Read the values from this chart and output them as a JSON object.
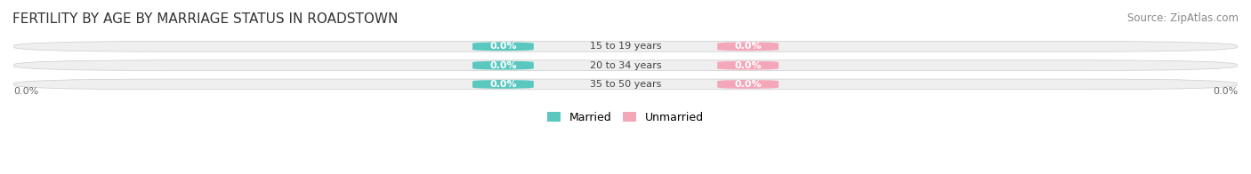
{
  "title": "FERTILITY BY AGE BY MARRIAGE STATUS IN ROADSTOWN",
  "source": "Source: ZipAtlas.com",
  "categories": [
    "15 to 19 years",
    "20 to 34 years",
    "35 to 50 years"
  ],
  "married_values": [
    0.0,
    0.0,
    0.0
  ],
  "unmarried_values": [
    0.0,
    0.0,
    0.0
  ],
  "married_color": "#5BC8C0",
  "unmarried_color": "#F4A7B9",
  "bar_bg_color": "#EFEFEF",
  "bar_height": 0.55,
  "xlim": [
    -1,
    1
  ],
  "ylim": [
    -0.5,
    2.5
  ],
  "bg_color": "#FFFFFF",
  "title_fontsize": 11,
  "source_fontsize": 8.5,
  "label_fontsize": 8,
  "axis_label_fontsize": 8,
  "legend_fontsize": 9
}
